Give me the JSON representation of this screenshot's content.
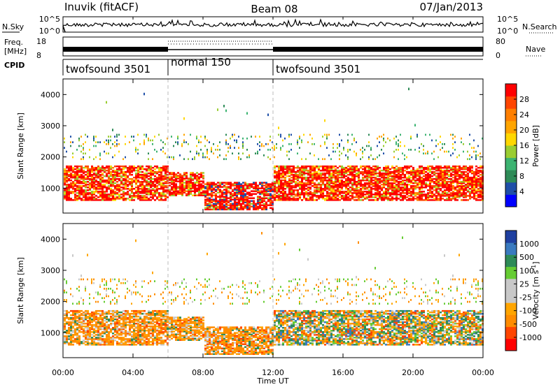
{
  "header": {
    "station": "Inuvik (fitACF)",
    "beam": "Beam 08",
    "date": "07/Jan/2013"
  },
  "panels": {
    "nsky": {
      "label": "N.Sky",
      "ticks": [
        "10^5",
        "10^0"
      ]
    },
    "nsearch": {
      "label": "N.Search",
      "ticks": [
        "10^5",
        "10^0"
      ]
    },
    "freq": {
      "label_top": "Freq.",
      "label_unit": "[MHz]",
      "ticks": [
        "18",
        "8"
      ]
    },
    "nave": {
      "label": "Nave",
      "ticks": [
        "80",
        "0"
      ]
    },
    "cpid": {
      "label": "CPID",
      "segments": [
        "twofsound 3501",
        "normal 150",
        "twofsound 3501"
      ]
    }
  },
  "colors": {
    "power": [
      "#0000ff",
      "#1f4fa8",
      "#2e8b57",
      "#3cb371",
      "#9acd32",
      "#ffd700",
      "#ffa500",
      "#ff7f00",
      "#ff4500",
      "#ff0000"
    ],
    "velocity": [
      "#ff0000",
      "#ff4500",
      "#ff8c00",
      "#ffa500",
      "#c8c8c8",
      "#c8c8c8",
      "#66cc33",
      "#2e8b57",
      "#3a7abf",
      "#1f3fa0"
    ]
  },
  "chart_data": [
    {
      "type": "heatmap",
      "panel": "power",
      "ylabel": "Slant Range [km]",
      "yticks": [
        "1000",
        "2000",
        "3000",
        "4000"
      ],
      "ylim": [
        200,
        4500
      ],
      "colorbar_label": "Power [dB]",
      "colorbar_ticks": [
        "28",
        "24",
        "20",
        "16",
        "12",
        "8",
        "4"
      ],
      "main_echo_band_km": [
        600,
        1700
      ],
      "upper_echo_band_km": [
        1900,
        2700
      ]
    },
    {
      "type": "heatmap",
      "panel": "velocity",
      "ylabel": "Slant Range [km]",
      "yticks": [
        "1000",
        "2000",
        "3000",
        "4000"
      ],
      "ylim": [
        200,
        4500
      ],
      "colorbar_label": "Velocity [m s^-1]",
      "colorbar_ticks": [
        "1000",
        "500",
        "100",
        "25",
        "-25",
        "-100",
        "-500",
        "-1000"
      ],
      "main_echo_band_km": [
        600,
        1700
      ],
      "upper_echo_band_km": [
        1900,
        2700
      ]
    }
  ],
  "xaxis": {
    "label": "Time UT",
    "ticks": [
      "00:00",
      "04:00",
      "08:00",
      "12:00",
      "16:00",
      "20:00",
      "00:00"
    ],
    "range_hours": [
      0,
      24
    ],
    "mode_changes_hours": [
      6,
      12
    ]
  }
}
